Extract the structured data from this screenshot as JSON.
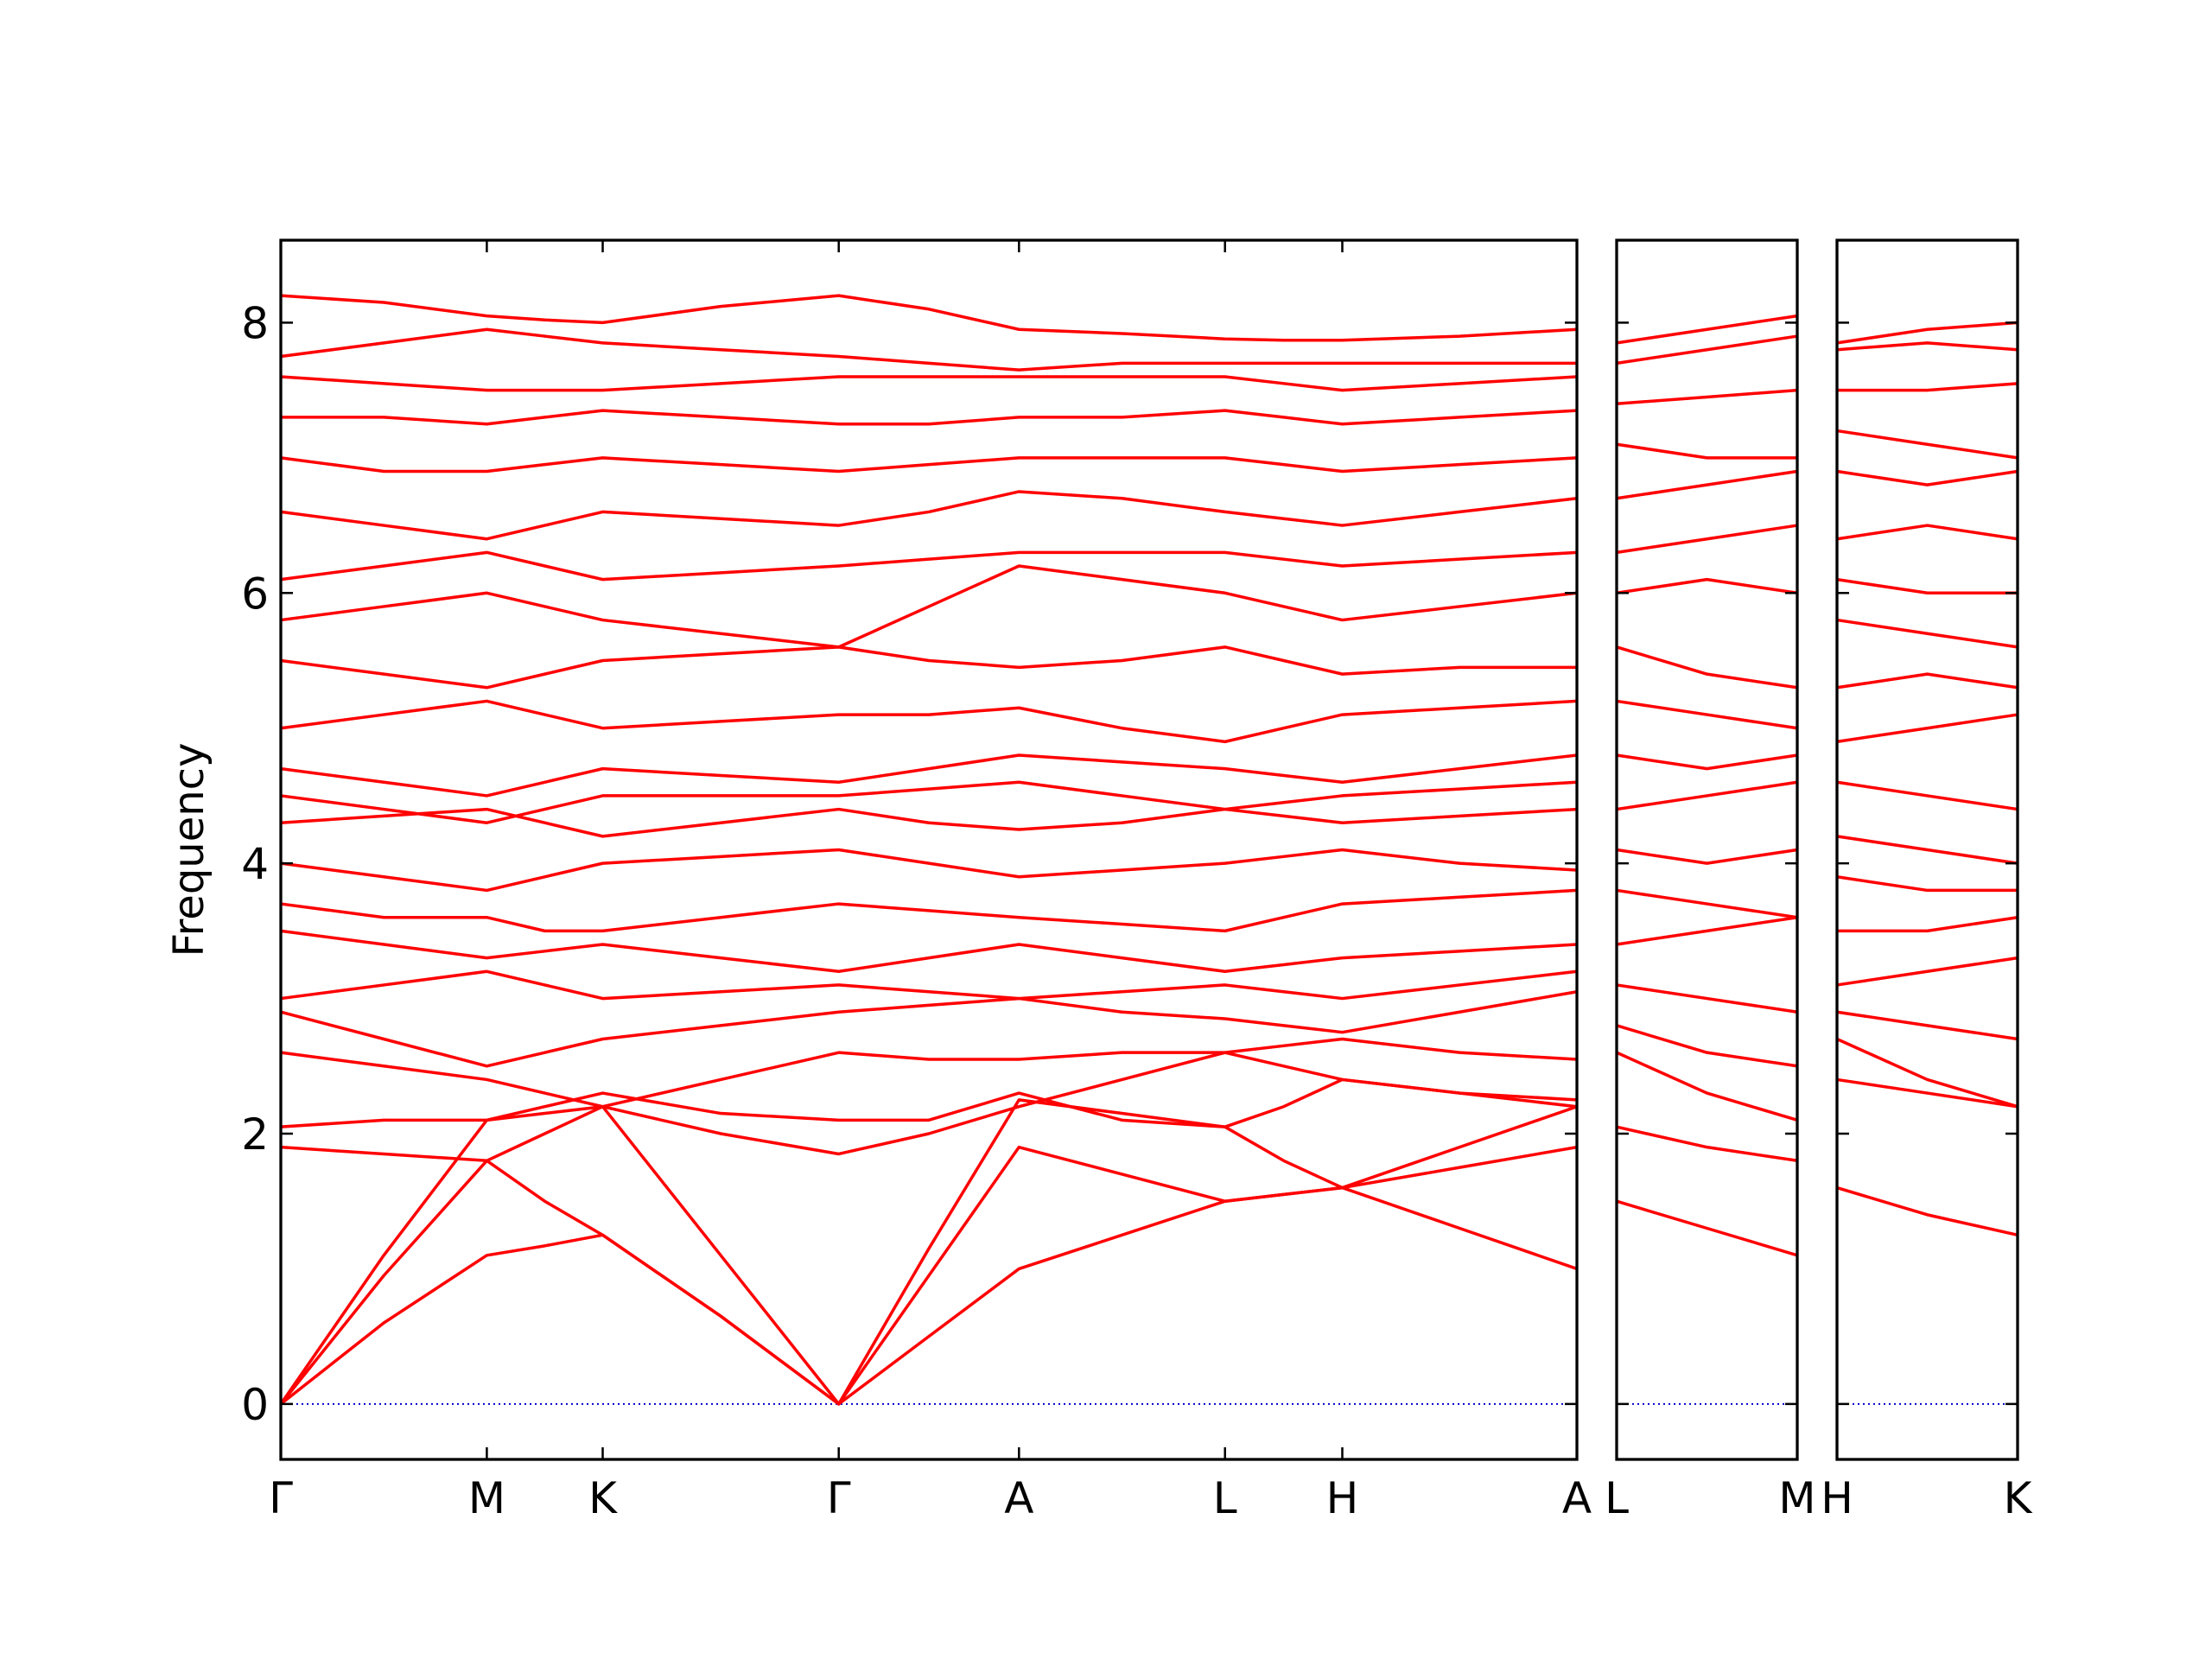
{
  "chart_data": [
    {
      "type": "line",
      "ylabel": "Frequency",
      "color": "#ff0000",
      "zero_line": 0,
      "zero_line_color": "#0000cc",
      "x": [
        0,
        0.72,
        1.44,
        1.845,
        2.25,
        3.075,
        3.9,
        4.53,
        5.16,
        5.88,
        6.6,
        7.01,
        7.42,
        8.24,
        9.06
      ],
      "xlim": [
        0,
        9.06
      ],
      "xticks": [
        {
          "value": 0,
          "label": "Γ"
        },
        {
          "value": 1.44,
          "label": "M"
        },
        {
          "value": 2.25,
          "label": "K"
        },
        {
          "value": 3.9,
          "label": "Γ"
        },
        {
          "value": 5.16,
          "label": "A"
        },
        {
          "value": 6.6,
          "label": "L"
        },
        {
          "value": 7.42,
          "label": "H"
        },
        {
          "value": 9.06,
          "label": "A"
        }
      ],
      "ylim": [
        -0.41,
        8.61
      ],
      "yticks": [
        0,
        2,
        4,
        6,
        8
      ],
      "show_ytick_labels": true,
      "series": [
        {
          "values": [
            0,
            0.6,
            1.1,
            1.17,
            1.25,
            0.65,
            0,
            0.5,
            1.0,
            1.25,
            1.5,
            1.55,
            1.6,
            1.3,
            1.0
          ]
        },
        {
          "values": [
            0,
            0.95,
            1.8,
            1.5,
            1.25,
            0.65,
            0,
            0.95,
            1.9,
            1.7,
            1.5,
            1.55,
            1.6,
            1.9,
            2.2
          ]
        },
        {
          "values": [
            0,
            1.1,
            2.1,
            2.15,
            2.2,
            1.1,
            0,
            1.15,
            2.25,
            2.15,
            2.05,
            1.8,
            1.6,
            1.75,
            1.9
          ]
        },
        {
          "values": [
            1.9,
            1.85,
            1.8,
            2.0,
            2.2,
            2.0,
            1.85,
            2.0,
            2.2,
            2.4,
            2.6,
            2.5,
            2.4,
            2.3,
            2.2
          ]
        },
        {
          "values": [
            2.05,
            2.1,
            2.1,
            2.2,
            2.3,
            2.15,
            2.1,
            2.1,
            2.3,
            2.1,
            2.05,
            2.2,
            2.4,
            2.3,
            2.25
          ]
        },
        {
          "values": [
            2.6,
            2.5,
            2.4,
            2.3,
            2.2,
            2.4,
            2.6,
            2.55,
            2.55,
            2.6,
            2.6,
            2.65,
            2.7,
            2.6,
            2.55
          ]
        },
        {
          "values": [
            2.9,
            2.7,
            2.5,
            2.6,
            2.7,
            2.8,
            2.9,
            2.95,
            3.0,
            2.9,
            2.85,
            2.8,
            2.75,
            2.9,
            3.05
          ]
        },
        {
          "values": [
            3.0,
            3.1,
            3.2,
            3.1,
            3.0,
            3.05,
            3.1,
            3.05,
            3.0,
            3.05,
            3.1,
            3.05,
            3.0,
            3.1,
            3.2
          ]
        },
        {
          "values": [
            3.5,
            3.4,
            3.3,
            3.35,
            3.4,
            3.3,
            3.2,
            3.3,
            3.4,
            3.3,
            3.2,
            3.25,
            3.3,
            3.35,
            3.4
          ]
        },
        {
          "values": [
            3.7,
            3.6,
            3.6,
            3.5,
            3.5,
            3.6,
            3.7,
            3.65,
            3.6,
            3.55,
            3.5,
            3.6,
            3.7,
            3.75,
            3.8
          ]
        },
        {
          "values": [
            4.0,
            3.9,
            3.8,
            3.9,
            4.0,
            4.05,
            4.1,
            4.0,
            3.9,
            3.95,
            4.0,
            4.05,
            4.1,
            4.0,
            3.95
          ]
        },
        {
          "values": [
            4.3,
            4.35,
            4.4,
            4.3,
            4.2,
            4.3,
            4.4,
            4.3,
            4.25,
            4.3,
            4.4,
            4.35,
            4.3,
            4.35,
            4.4
          ]
        },
        {
          "values": [
            4.5,
            4.4,
            4.3,
            4.4,
            4.5,
            4.5,
            4.5,
            4.55,
            4.6,
            4.5,
            4.4,
            4.45,
            4.5,
            4.55,
            4.6
          ]
        },
        {
          "values": [
            4.7,
            4.6,
            4.5,
            4.6,
            4.7,
            4.65,
            4.6,
            4.7,
            4.8,
            4.75,
            4.7,
            4.65,
            4.6,
            4.7,
            4.8
          ]
        },
        {
          "values": [
            5.0,
            5.1,
            5.2,
            5.1,
            5.0,
            5.05,
            5.1,
            5.1,
            5.15,
            5.0,
            4.9,
            5.0,
            5.1,
            5.15,
            5.2
          ]
        },
        {
          "values": [
            5.5,
            5.4,
            5.3,
            5.4,
            5.5,
            5.55,
            5.6,
            5.5,
            5.45,
            5.5,
            5.6,
            5.5,
            5.4,
            5.45,
            5.45
          ]
        },
        {
          "values": [
            5.8,
            5.9,
            6.0,
            5.9,
            5.8,
            5.7,
            5.6,
            5.9,
            6.2,
            6.1,
            6.0,
            5.9,
            5.8,
            5.9,
            6.0
          ]
        },
        {
          "values": [
            6.1,
            6.2,
            6.3,
            6.2,
            6.1,
            6.15,
            6.2,
            6.25,
            6.3,
            6.3,
            6.3,
            6.25,
            6.2,
            6.25,
            6.3
          ]
        },
        {
          "values": [
            6.6,
            6.5,
            6.4,
            6.5,
            6.6,
            6.55,
            6.5,
            6.6,
            6.75,
            6.7,
            6.6,
            6.55,
            6.5,
            6.6,
            6.7
          ]
        },
        {
          "values": [
            7.0,
            6.9,
            6.9,
            6.95,
            7.0,
            6.95,
            6.9,
            6.95,
            7.0,
            7.0,
            7.0,
            6.95,
            6.9,
            6.95,
            7.0
          ]
        },
        {
          "values": [
            7.3,
            7.3,
            7.25,
            7.3,
            7.35,
            7.3,
            7.25,
            7.25,
            7.3,
            7.3,
            7.35,
            7.3,
            7.25,
            7.3,
            7.35
          ]
        },
        {
          "values": [
            7.6,
            7.55,
            7.5,
            7.5,
            7.5,
            7.55,
            7.6,
            7.6,
            7.6,
            7.6,
            7.6,
            7.55,
            7.5,
            7.55,
            7.6
          ]
        },
        {
          "values": [
            7.75,
            7.85,
            7.95,
            7.9,
            7.85,
            7.8,
            7.75,
            7.7,
            7.65,
            7.7,
            7.7,
            7.7,
            7.7,
            7.7,
            7.7
          ]
        },
        {
          "values": [
            8.2,
            8.15,
            8.05,
            8.02,
            8.0,
            8.12,
            8.2,
            8.1,
            7.95,
            7.92,
            7.88,
            7.87,
            7.87,
            7.9,
            7.95
          ]
        }
      ]
    },
    {
      "type": "line",
      "color": "#ff0000",
      "zero_line": 0,
      "zero_line_color": "#0000cc",
      "x": [
        0,
        0.63,
        1.26
      ],
      "xlim": [
        0,
        1.26
      ],
      "xticks": [
        {
          "value": 0,
          "label": "L"
        },
        {
          "value": 1.26,
          "label": "M"
        }
      ],
      "ylim": [
        -0.41,
        8.61
      ],
      "yticks": [
        0,
        2,
        4,
        6,
        8
      ],
      "show_ytick_labels": false,
      "series": [
        {
          "values": [
            1.5,
            1.3,
            1.1
          ]
        },
        {
          "values": [
            2.05,
            1.9,
            1.8
          ]
        },
        {
          "values": [
            2.6,
            2.3,
            2.1
          ]
        },
        {
          "values": [
            2.8,
            2.6,
            2.5
          ]
        },
        {
          "values": [
            3.1,
            3.0,
            2.9
          ]
        },
        {
          "values": [
            3.4,
            3.5,
            3.6
          ]
        },
        {
          "values": [
            3.8,
            3.7,
            3.6
          ]
        },
        {
          "values": [
            4.1,
            4.0,
            4.1
          ]
        },
        {
          "values": [
            4.4,
            4.5,
            4.6
          ]
        },
        {
          "values": [
            4.8,
            4.7,
            4.8
          ]
        },
        {
          "values": [
            5.2,
            5.1,
            5.0
          ]
        },
        {
          "values": [
            5.6,
            5.4,
            5.3
          ]
        },
        {
          "values": [
            6.0,
            6.1,
            6.0
          ]
        },
        {
          "values": [
            6.3,
            6.4,
            6.5
          ]
        },
        {
          "values": [
            6.7,
            6.8,
            6.9
          ]
        },
        {
          "values": [
            7.1,
            7.0,
            7.0
          ]
        },
        {
          "values": [
            7.4,
            7.45,
            7.5
          ]
        },
        {
          "values": [
            7.7,
            7.8,
            7.9
          ]
        },
        {
          "values": [
            7.85,
            7.95,
            8.05
          ]
        }
      ]
    },
    {
      "type": "line",
      "color": "#ff0000",
      "zero_line": 0,
      "zero_line_color": "#0000cc",
      "x": [
        0,
        0.63,
        1.26
      ],
      "xlim": [
        0,
        1.26
      ],
      "xticks": [
        {
          "value": 0,
          "label": "H"
        },
        {
          "value": 1.26,
          "label": "K"
        }
      ],
      "ylim": [
        -0.41,
        8.61
      ],
      "yticks": [
        0,
        2,
        4,
        6,
        8
      ],
      "show_ytick_labels": false,
      "series": [
        {
          "values": [
            1.6,
            1.4,
            1.25
          ]
        },
        {
          "values": [
            2.4,
            2.3,
            2.2
          ]
        },
        {
          "values": [
            2.7,
            2.4,
            2.2
          ]
        },
        {
          "values": [
            2.9,
            2.8,
            2.7
          ]
        },
        {
          "values": [
            3.1,
            3.2,
            3.3
          ]
        },
        {
          "values": [
            3.5,
            3.5,
            3.6
          ]
        },
        {
          "values": [
            3.9,
            3.8,
            3.8
          ]
        },
        {
          "values": [
            4.2,
            4.1,
            4.0
          ]
        },
        {
          "values": [
            4.6,
            4.5,
            4.4
          ]
        },
        {
          "values": [
            4.9,
            5.0,
            5.1
          ]
        },
        {
          "values": [
            5.3,
            5.4,
            5.3
          ]
        },
        {
          "values": [
            5.8,
            5.7,
            5.6
          ]
        },
        {
          "values": [
            6.1,
            6.0,
            6.0
          ]
        },
        {
          "values": [
            6.4,
            6.5,
            6.4
          ]
        },
        {
          "values": [
            6.9,
            6.8,
            6.9
          ]
        },
        {
          "values": [
            7.2,
            7.1,
            7.0
          ]
        },
        {
          "values": [
            7.5,
            7.5,
            7.55
          ]
        },
        {
          "values": [
            7.8,
            7.85,
            7.8
          ]
        },
        {
          "values": [
            7.85,
            7.95,
            8.0
          ]
        }
      ]
    }
  ]
}
